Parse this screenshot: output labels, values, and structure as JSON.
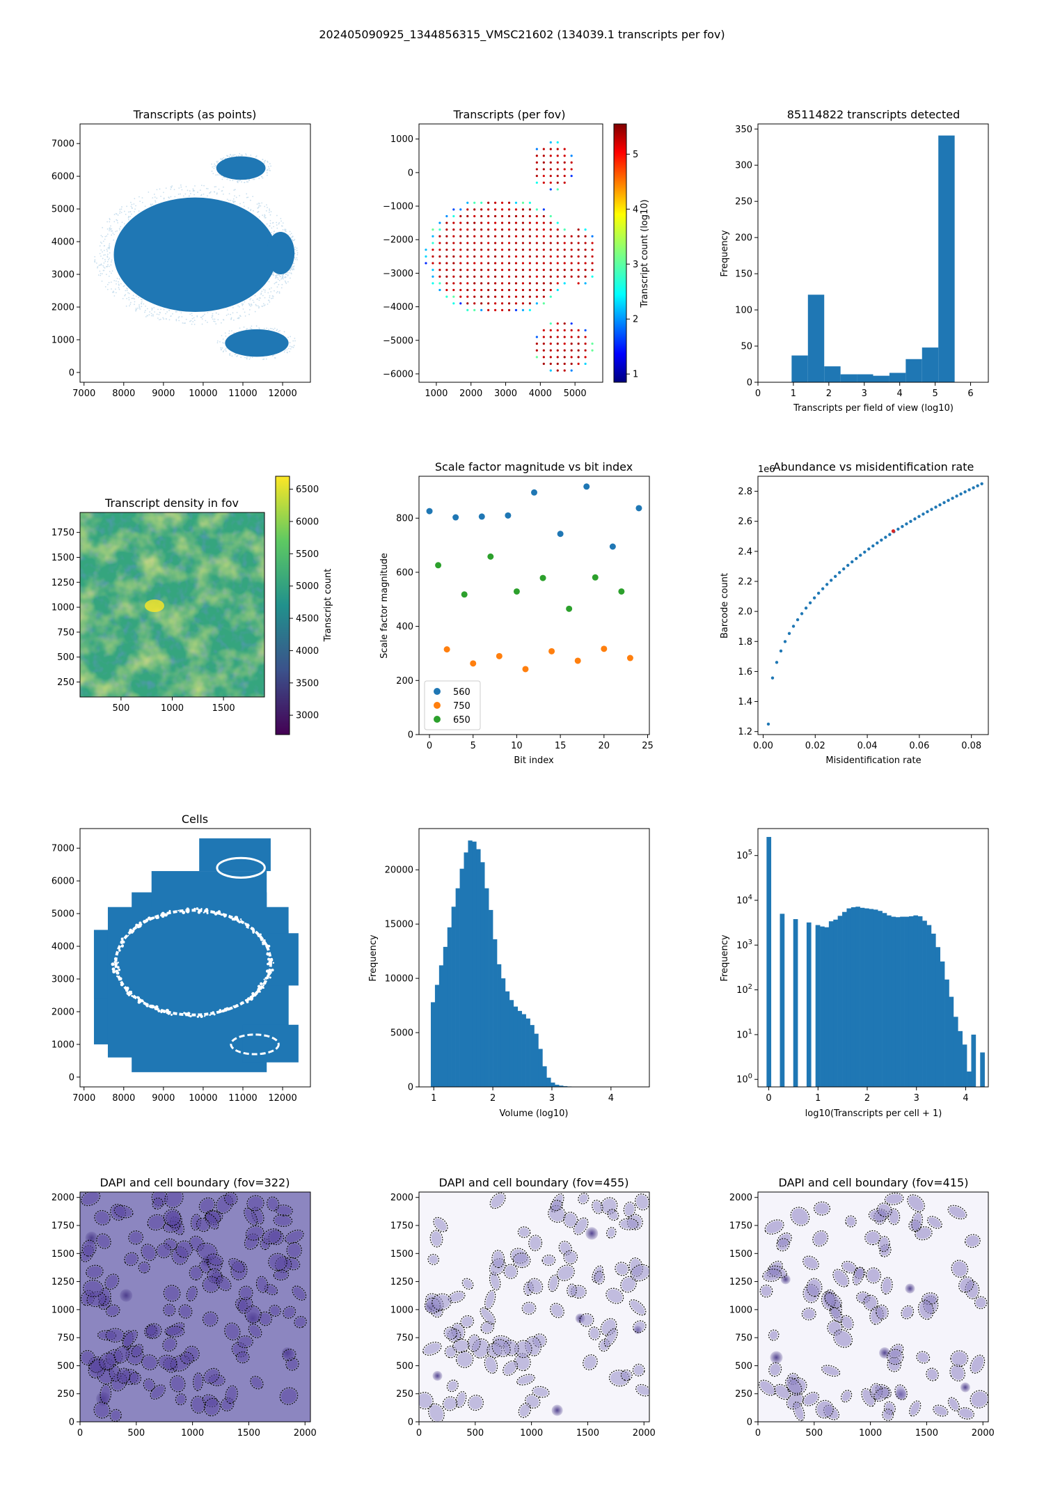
{
  "figure": {
    "title": "202405090925_1344856315_VMSC21602 (134039.1 transcripts per fov)"
  },
  "colors": {
    "blue": "#1f77b4",
    "orange": "#ff7f0e",
    "green": "#2ca02c",
    "dapi_dark": "#5c4b9a",
    "dapi_light": "#ffffff"
  },
  "chart_data": [
    {
      "id": "transcripts_points",
      "type": "scatter",
      "title": "Transcripts (as points)",
      "xlabel": "",
      "ylabel": "",
      "xlim": [
        6900,
        12700
      ],
      "ylim": [
        -300,
        7600
      ],
      "xticks": [
        7000,
        8000,
        9000,
        10000,
        11000,
        12000
      ],
      "yticks": [
        0,
        1000,
        2000,
        3000,
        4000,
        5000,
        6000,
        7000
      ],
      "regions": [
        {
          "name": "main tissue",
          "cx": 9800,
          "cy": 3600,
          "rx": 2050,
          "ry": 1750
        },
        {
          "name": "top lobe",
          "cx": 10950,
          "cy": 6250,
          "rx": 620,
          "ry": 360
        },
        {
          "name": "right lobe",
          "cx": 11950,
          "cy": 3650,
          "rx": 350,
          "ry": 650
        },
        {
          "name": "bottom lobe",
          "cx": 11350,
          "cy": 900,
          "rx": 800,
          "ry": 420
        }
      ]
    },
    {
      "id": "transcripts_per_fov",
      "type": "scatter",
      "title": "Transcripts (per fov)",
      "xlabel": "",
      "ylabel": "",
      "xlim": [
        500,
        5800
      ],
      "ylim": [
        -6250,
        1450
      ],
      "xticks": [
        1000,
        2000,
        3000,
        4000,
        5000
      ],
      "yticks": [
        -6000,
        -5000,
        -4000,
        -3000,
        -2000,
        -1000,
        0,
        1000
      ],
      "colorbar": {
        "label": "Transcript count (log10)",
        "min": 0.85,
        "max": 5.55,
        "ticks": [
          1,
          2,
          3,
          4,
          5
        ]
      },
      "grid_spacing": 200,
      "value_interior": 5.4,
      "value_edge": 1.5
    },
    {
      "id": "transcripts_histogram",
      "type": "bar",
      "title": "85114822 transcripts detected",
      "xlabel": "Transcripts per field of view (log10)",
      "ylabel": "Frequency",
      "xlim": [
        0,
        6.5
      ],
      "ylim": [
        0,
        357
      ],
      "xticks": [
        0,
        1,
        2,
        3,
        4,
        5,
        6
      ],
      "yticks": [
        0,
        50,
        100,
        150,
        200,
        250,
        300,
        350
      ],
      "bin_edges": [
        0.95,
        1.41,
        1.87,
        2.33,
        2.79,
        3.25,
        3.71,
        4.17,
        4.63,
        5.09,
        5.55
      ],
      "values": [
        37,
        121,
        22,
        11,
        11,
        9,
        13,
        32,
        48,
        341
      ]
    },
    {
      "id": "density_in_fov",
      "type": "heatmap",
      "title": "Transcript density in fov",
      "xlabel": "",
      "ylabel": "",
      "xlim": [
        100,
        1900
      ],
      "ylim": [
        100,
        1950
      ],
      "xticks": [
        500,
        1000,
        1500
      ],
      "yticks": [
        250,
        500,
        750,
        1000,
        1250,
        1500,
        1750
      ],
      "colorbar": {
        "label": "Transcript count",
        "min": 2700,
        "max": 6700,
        "ticks": [
          3000,
          3500,
          4000,
          4500,
          5000,
          5500,
          6000,
          6500
        ]
      }
    },
    {
      "id": "scale_factor",
      "type": "scatter",
      "title": "Scale factor magnitude vs bit index",
      "xlabel": "Bit index",
      "ylabel": "Scale factor magnitude",
      "xlim": [
        -1.2,
        25.2
      ],
      "ylim": [
        0,
        955
      ],
      "xticks": [
        0,
        5,
        10,
        15,
        20,
        25
      ],
      "yticks": [
        0,
        200,
        400,
        600,
        800
      ],
      "legend_position": "lower-left",
      "series": [
        {
          "name": "560",
          "x": [
            0,
            3,
            6,
            9,
            12,
            15,
            18,
            21,
            24
          ],
          "y": [
            826,
            803,
            806,
            810,
            895,
            742,
            917,
            695,
            837
          ]
        },
        {
          "name": "750",
          "x": [
            2,
            5,
            8,
            11,
            14,
            17,
            20,
            23
          ],
          "y": [
            315,
            263,
            290,
            242,
            308,
            273,
            317,
            283
          ]
        },
        {
          "name": "650",
          "x": [
            1,
            4,
            7,
            10,
            13,
            16,
            19,
            22
          ],
          "y": [
            626,
            518,
            658,
            529,
            579,
            465,
            581,
            529
          ]
        }
      ]
    },
    {
      "id": "abundance_vs_misid",
      "type": "scatter",
      "title": "Abundance vs misidentification rate",
      "xlabel": "Misidentification rate",
      "ylabel": "Barcode count",
      "offset_label": "1e6",
      "xlim": [
        -0.002,
        0.0865
      ],
      "ylim": [
        1.18,
        2.9
      ],
      "xticks": [
        0.0,
        0.02,
        0.04,
        0.06,
        0.08
      ],
      "yticks": [
        1.2,
        1.4,
        1.6,
        1.8,
        2.0,
        2.2,
        2.4,
        2.6,
        2.8
      ],
      "highlight": {
        "x": 0.05,
        "y": 2.535
      }
    },
    {
      "id": "cells",
      "type": "scatter",
      "title": "Cells",
      "xlabel": "",
      "ylabel": "",
      "xlim": [
        6900,
        12700
      ],
      "ylim": [
        -300,
        7600
      ],
      "xticks": [
        7000,
        8000,
        9000,
        10000,
        11000,
        12000
      ],
      "yticks": [
        0,
        1000,
        2000,
        3000,
        4000,
        5000,
        6000,
        7000
      ]
    },
    {
      "id": "volume_histogram",
      "type": "bar",
      "title": "",
      "xlabel": "Volume (log10)",
      "ylabel": "Frequency",
      "xlim": [
        0.75,
        4.65
      ],
      "ylim": [
        0,
        23800
      ],
      "xticks": [
        1,
        2,
        3,
        4
      ],
      "yticks": [
        0,
        5000,
        10000,
        15000,
        20000
      ],
      "bin_start": 0.95,
      "bin_width": 0.07,
      "values": [
        7800,
        9400,
        11200,
        12900,
        14700,
        16600,
        18300,
        20100,
        21600,
        22700,
        22600,
        21900,
        20700,
        18300,
        16300,
        13600,
        11300,
        10000,
        8800,
        8000,
        7400,
        7000,
        6700,
        6300,
        5700,
        4900,
        3500,
        1900,
        850,
        400,
        200,
        120,
        70,
        40,
        20,
        10,
        6,
        4,
        2,
        1,
        1,
        1,
        1
      ]
    },
    {
      "id": "transcripts_per_cell",
      "type": "bar",
      "title": "",
      "xlabel": "log10(Transcripts per cell + 1)",
      "ylabel": "Frequency",
      "scale": "log",
      "xlim": [
        -0.22,
        4.46
      ],
      "ylim": [
        0.68,
        400000
      ],
      "xticks": [
        0,
        1,
        2,
        3,
        4
      ],
      "yticks": [
        "10^0",
        "10^1",
        "10^2",
        "10^3",
        "10^4",
        "10^5"
      ],
      "bin_width": 0.0904,
      "values": [
        260000,
        0,
        0,
        5000,
        0,
        0,
        3800,
        0,
        0,
        3200,
        0,
        2800,
        2600,
        2500,
        3400,
        3700,
        4500,
        5500,
        6600,
        7000,
        7200,
        6800,
        6600,
        6400,
        6200,
        5800,
        5200,
        4600,
        4300,
        4200,
        4300,
        4300,
        4400,
        4600,
        4400,
        3500,
        2800,
        1800,
        900,
        430,
        170,
        70,
        25,
        12,
        6,
        1.5,
        10,
        0,
        4
      ]
    },
    {
      "id": "dapi_322",
      "type": "heatmap",
      "title": "DAPI and cell boundary (fov=322)",
      "xlim": [
        0,
        2048
      ],
      "ylim": [
        0,
        2048
      ],
      "xticks": [
        0,
        500,
        1000,
        1500,
        2000
      ],
      "yticks": [
        0,
        250,
        500,
        750,
        1000,
        1250,
        1500,
        1750,
        2000
      ]
    },
    {
      "id": "dapi_455",
      "type": "heatmap",
      "title": "DAPI and cell boundary (fov=455)",
      "xlim": [
        0,
        2048
      ],
      "ylim": [
        0,
        2048
      ],
      "xticks": [
        0,
        500,
        1000,
        1500,
        2000
      ],
      "yticks": [
        0,
        250,
        500,
        750,
        1000,
        1250,
        1500,
        1750,
        2000
      ]
    },
    {
      "id": "dapi_415",
      "type": "heatmap",
      "title": "DAPI and cell boundary (fov=415)",
      "xlim": [
        0,
        2048
      ],
      "ylim": [
        0,
        2048
      ],
      "xticks": [
        0,
        500,
        1000,
        1500,
        2000
      ],
      "yticks": [
        0,
        250,
        500,
        750,
        1000,
        1250,
        1500,
        1750,
        2000
      ]
    }
  ]
}
